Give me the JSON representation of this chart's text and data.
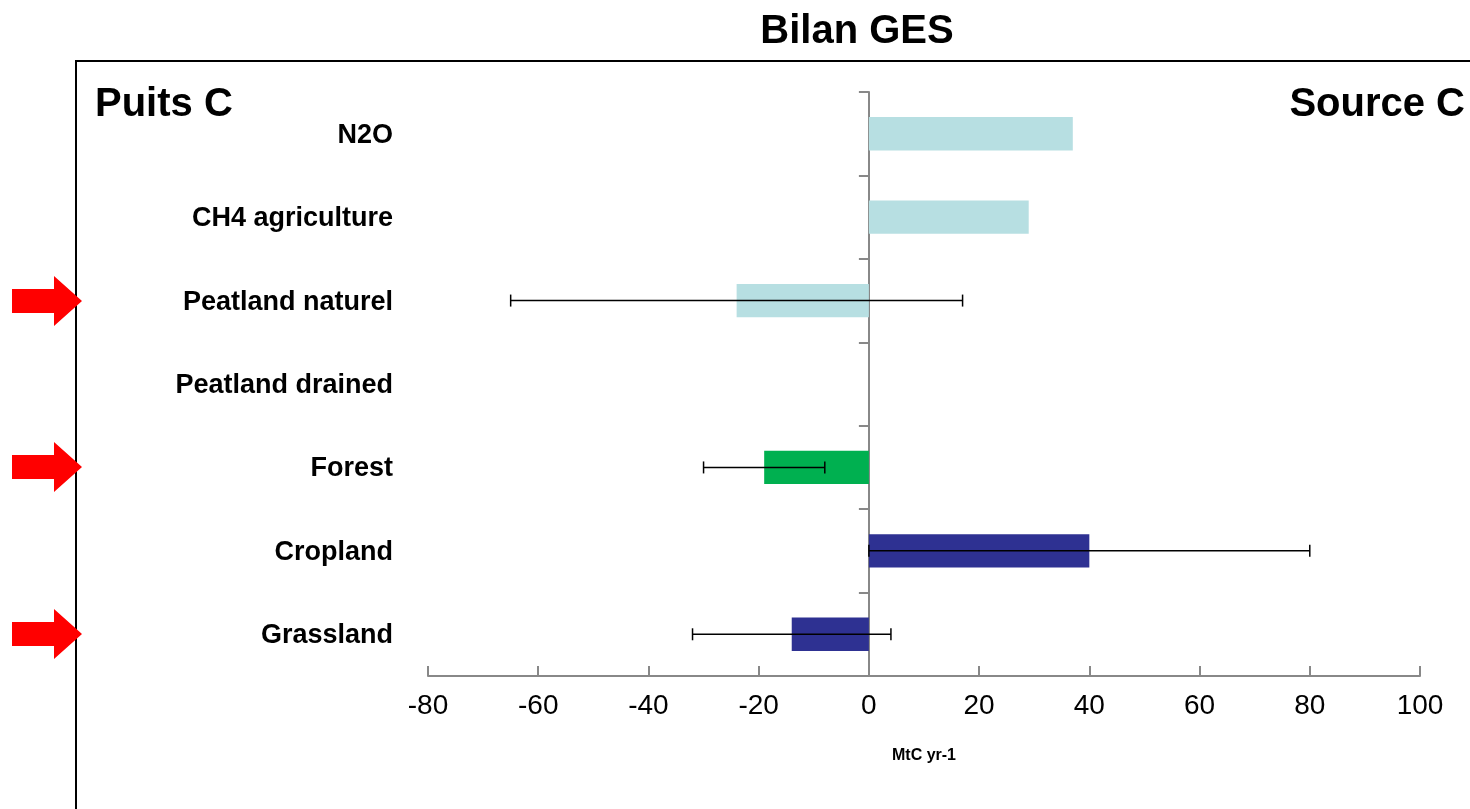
{
  "chart_data": {
    "type": "bar",
    "orientation": "horizontal",
    "title": "Bilan GES",
    "xlabel": "MtC yr-1",
    "categories": [
      "N2O",
      "CH4 agriculture",
      "Peatland naturel",
      "Peatland drained",
      "Forest",
      "Cropland",
      "Grassland"
    ],
    "values": [
      37,
      29,
      -24,
      null,
      -19,
      40,
      -14
    ],
    "colors": [
      "#b7dfe2",
      "#b7dfe2",
      "#b7dfe2",
      "#b7dfe2",
      "#00b050",
      "#2e3192",
      "#2e3192"
    ],
    "errors": [
      null,
      null,
      [
        -65,
        17
      ],
      null,
      [
        -30,
        -8
      ],
      [
        0,
        80
      ],
      [
        -32,
        4
      ]
    ],
    "xlim": [
      -80,
      100
    ],
    "xticks": [
      -80,
      -60,
      -40,
      -20,
      0,
      20,
      40,
      60,
      80,
      100
    ],
    "annotations": [
      "Puits C",
      "Source C"
    ]
  }
}
